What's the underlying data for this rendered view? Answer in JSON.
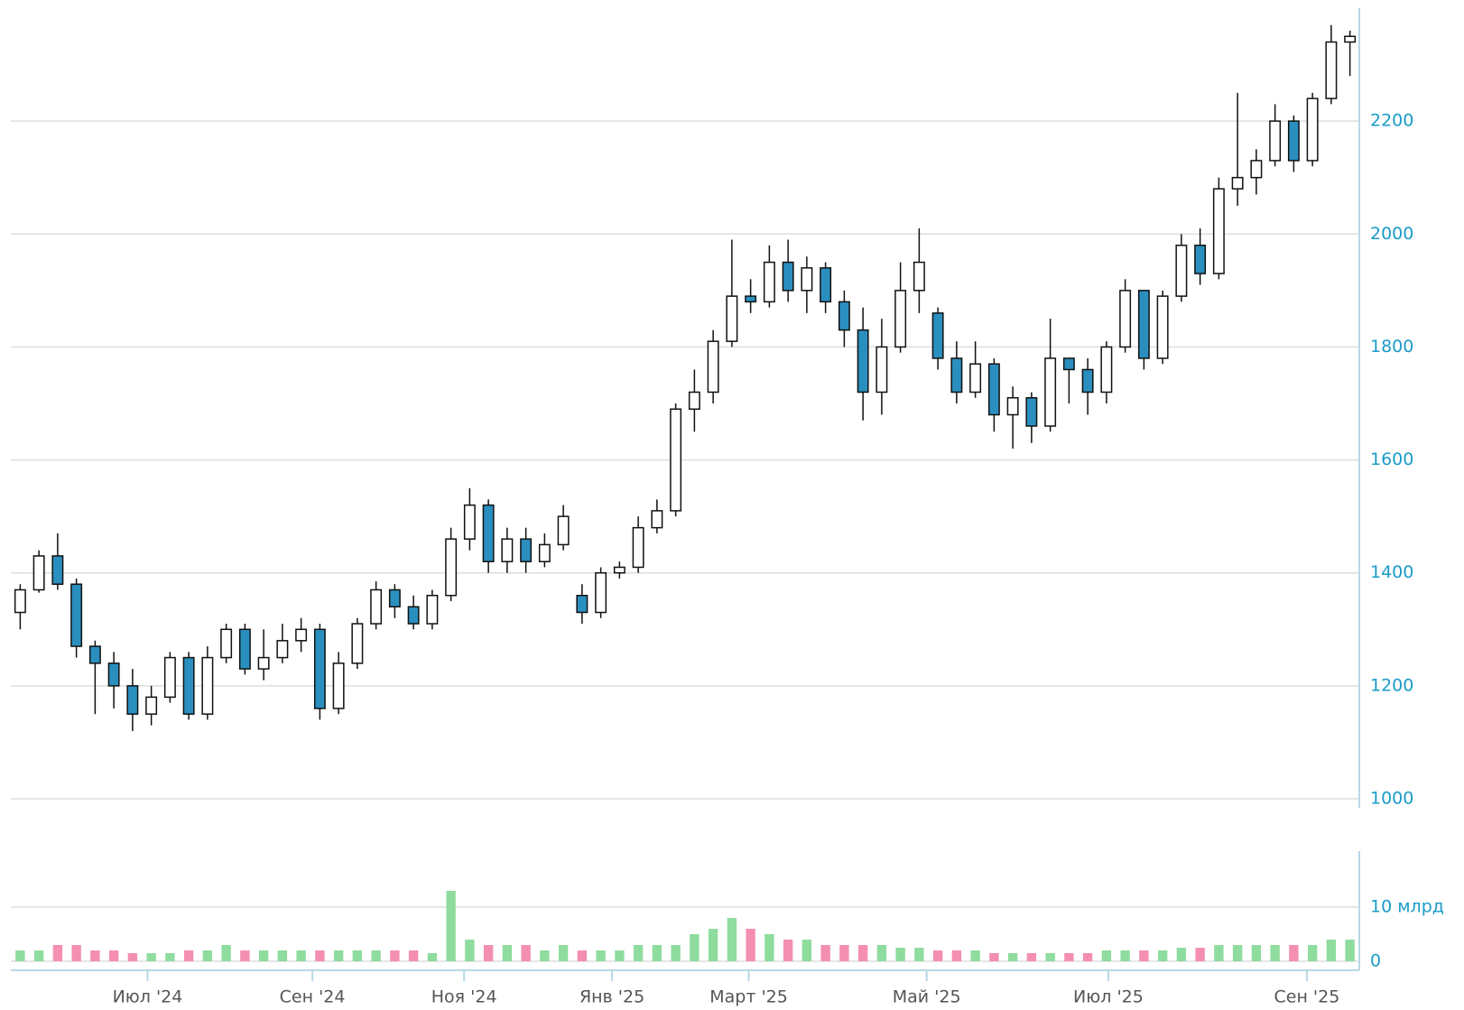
{
  "chart_data": [
    {
      "type": "candlestick",
      "categories": [
        null,
        null,
        null,
        null,
        null,
        null,
        null,
        null,
        null,
        null,
        null,
        null,
        null,
        null,
        null,
        null,
        null,
        null,
        null,
        null,
        null,
        null,
        null,
        null,
        null,
        null,
        null,
        null,
        null,
        null,
        null,
        null,
        null,
        null,
        null,
        null,
        null,
        null,
        null,
        null,
        null,
        null,
        null,
        null,
        null,
        null,
        null,
        null,
        null,
        null,
        null,
        null,
        null,
        null,
        null,
        null,
        null,
        null,
        null,
        null,
        null,
        null,
        null,
        null,
        null,
        null,
        null,
        null,
        null,
        null,
        null,
        null
      ],
      "open": [
        1330,
        1370,
        1430,
        1380,
        1270,
        1240,
        1200,
        1150,
        1180,
        1250,
        1150,
        1250,
        1300,
        1230,
        1250,
        1280,
        1300,
        1160,
        1240,
        1310,
        1370,
        1340,
        1310,
        1360,
        1460,
        1520,
        1420,
        1460,
        1420,
        1450,
        1360,
        1330,
        1400,
        1410,
        1480,
        1510,
        1690,
        1720,
        1810,
        1890,
        1880,
        1950,
        1900,
        1940,
        1880,
        1830,
        1720,
        1800,
        1900,
        1860,
        1780,
        1720,
        1770,
        1680,
        1710,
        1660,
        1780,
        1760,
        1720,
        1800,
        1900,
        1780,
        1890,
        1980,
        1930,
        2080,
        2100,
        2130,
        2200,
        2130,
        2240,
        2340
      ],
      "high": [
        1380,
        1440,
        1470,
        1390,
        1280,
        1260,
        1230,
        1200,
        1260,
        1260,
        1270,
        1310,
        1310,
        1300,
        1310,
        1320,
        1310,
        1260,
        1320,
        1385,
        1380,
        1360,
        1370,
        1480,
        1550,
        1530,
        1480,
        1480,
        1470,
        1520,
        1380,
        1410,
        1420,
        1500,
        1530,
        1700,
        1760,
        1830,
        1990,
        1920,
        1980,
        1990,
        1960,
        1950,
        1900,
        1870,
        1850,
        1950,
        2010,
        1870,
        1810,
        1810,
        1780,
        1730,
        1720,
        1850,
        1780,
        1780,
        1810,
        1920,
        1900,
        1900,
        2000,
        2010,
        2100,
        2250,
        2150,
        2230,
        2210,
        2250,
        2370,
        2360
      ],
      "low": [
        1300,
        1365,
        1370,
        1250,
        1150,
        1160,
        1120,
        1130,
        1170,
        1140,
        1140,
        1240,
        1220,
        1210,
        1240,
        1260,
        1140,
        1150,
        1230,
        1300,
        1320,
        1300,
        1300,
        1350,
        1440,
        1400,
        1400,
        1400,
        1410,
        1440,
        1310,
        1320,
        1390,
        1400,
        1470,
        1500,
        1650,
        1700,
        1800,
        1860,
        1870,
        1880,
        1860,
        1860,
        1800,
        1670,
        1680,
        1790,
        1860,
        1760,
        1700,
        1710,
        1650,
        1620,
        1630,
        1650,
        1700,
        1680,
        1700,
        1790,
        1760,
        1770,
        1880,
        1910,
        1920,
        2050,
        2070,
        2120,
        2110,
        2120,
        2230,
        2280
      ],
      "close": [
        1370,
        1430,
        1380,
        1270,
        1240,
        1200,
        1150,
        1180,
        1250,
        1150,
        1250,
        1300,
        1230,
        1250,
        1280,
        1300,
        1160,
        1240,
        1310,
        1370,
        1340,
        1310,
        1360,
        1460,
        1520,
        1420,
        1460,
        1420,
        1450,
        1500,
        1330,
        1400,
        1410,
        1480,
        1510,
        1690,
        1720,
        1810,
        1890,
        1880,
        1950,
        1900,
        1940,
        1880,
        1830,
        1720,
        1800,
        1900,
        1950,
        1780,
        1720,
        1770,
        1680,
        1710,
        1660,
        1780,
        1760,
        1720,
        1800,
        1900,
        1780,
        1890,
        1980,
        1930,
        2080,
        2100,
        2130,
        2200,
        2130,
        2240,
        2340,
        2350
      ],
      "up_color": "#ffffff",
      "down_color": "#2a8fbf",
      "ylim": [
        1000,
        2400
      ],
      "yticks": [
        1000,
        1200,
        1400,
        1600,
        1800,
        2000,
        2200
      ],
      "grid": true,
      "xticks": [
        {
          "value": 6.8,
          "label": "Июл '24"
        },
        {
          "value": 15.6,
          "label": "Сен '24"
        },
        {
          "value": 23.7,
          "label": "Ноя '24"
        },
        {
          "value": 31.6,
          "label": "Янв '25"
        },
        {
          "value": 38.9,
          "label": "Март '25"
        },
        {
          "value": 48.4,
          "label": "Май '25"
        },
        {
          "value": 58.1,
          "label": "Июл '25"
        },
        {
          "value": 68.7,
          "label": "Сен '25"
        }
      ]
    },
    {
      "type": "bar",
      "values": [
        2,
        2,
        3,
        3,
        2,
        2,
        1.5,
        1.5,
        1.5,
        2,
        2,
        3,
        2,
        2,
        2,
        2,
        2,
        2,
        2,
        2,
        2,
        2,
        1.5,
        13,
        4,
        3,
        3,
        3,
        2,
        3,
        2,
        2,
        2,
        3,
        3,
        3,
        5,
        6,
        8,
        6,
        5,
        4,
        4,
        3,
        3,
        3,
        3,
        2.5,
        2.5,
        2,
        2,
        2,
        1.5,
        1.5,
        1.5,
        1.5,
        1.5,
        1.5,
        2,
        2,
        2,
        2,
        2.5,
        2.5,
        3,
        3,
        3,
        3,
        3,
        3,
        4,
        4
      ],
      "up_color": "#8fdc9f",
      "down_color": "#f48fb1",
      "ylim": [
        0,
        20
      ],
      "yticks": [
        0,
        {
          "value": 10,
          "label": "10 млрд"
        }
      ],
      "grid": true
    }
  ]
}
